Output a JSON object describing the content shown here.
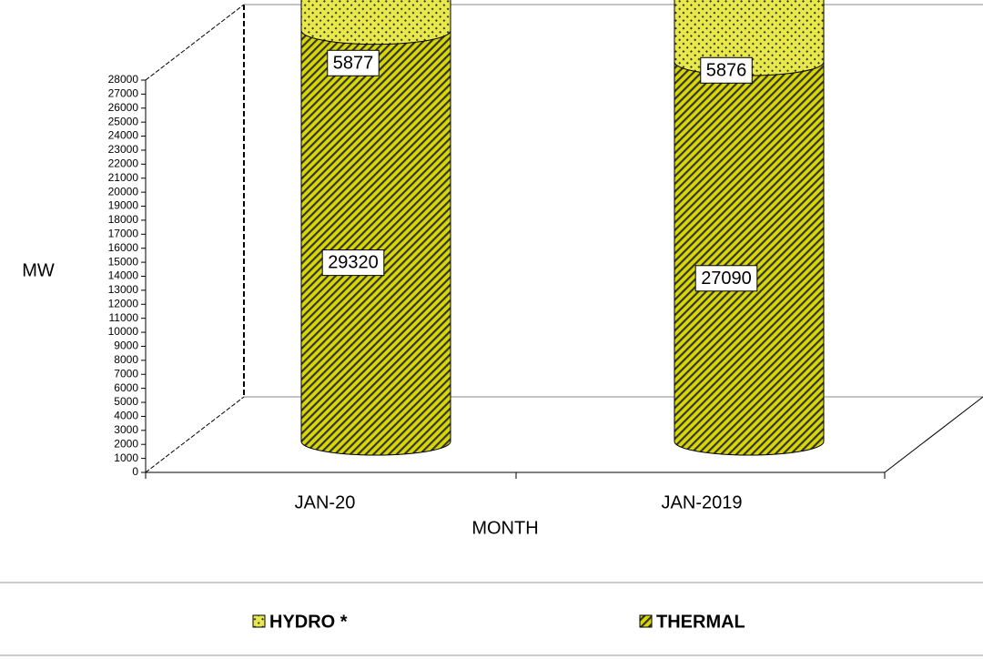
{
  "chart_data": {
    "type": "bar3d_stacked_cylinder",
    "categories": [
      "JAN-20",
      "JAN-2019"
    ],
    "series": [
      {
        "name": "HYDRO *",
        "color": "#e8e84a",
        "values": [
          5877,
          5876
        ]
      },
      {
        "name": "THERMAL",
        "color": "#d8d800",
        "values": [
          29320,
          27090
        ]
      }
    ],
    "ylabel": "MW",
    "xlabel": "MONTH",
    "ylim": [
      0,
      28000
    ],
    "yticks": [
      0,
      1000,
      2000,
      3000,
      4000,
      5000,
      6000,
      7000,
      8000,
      9000,
      10000,
      11000,
      12000,
      13000,
      14000,
      15000,
      16000,
      17000,
      18000,
      19000,
      20000,
      21000,
      22000,
      23000,
      24000,
      25000,
      26000,
      27000,
      28000
    ],
    "legend": "bottom"
  }
}
